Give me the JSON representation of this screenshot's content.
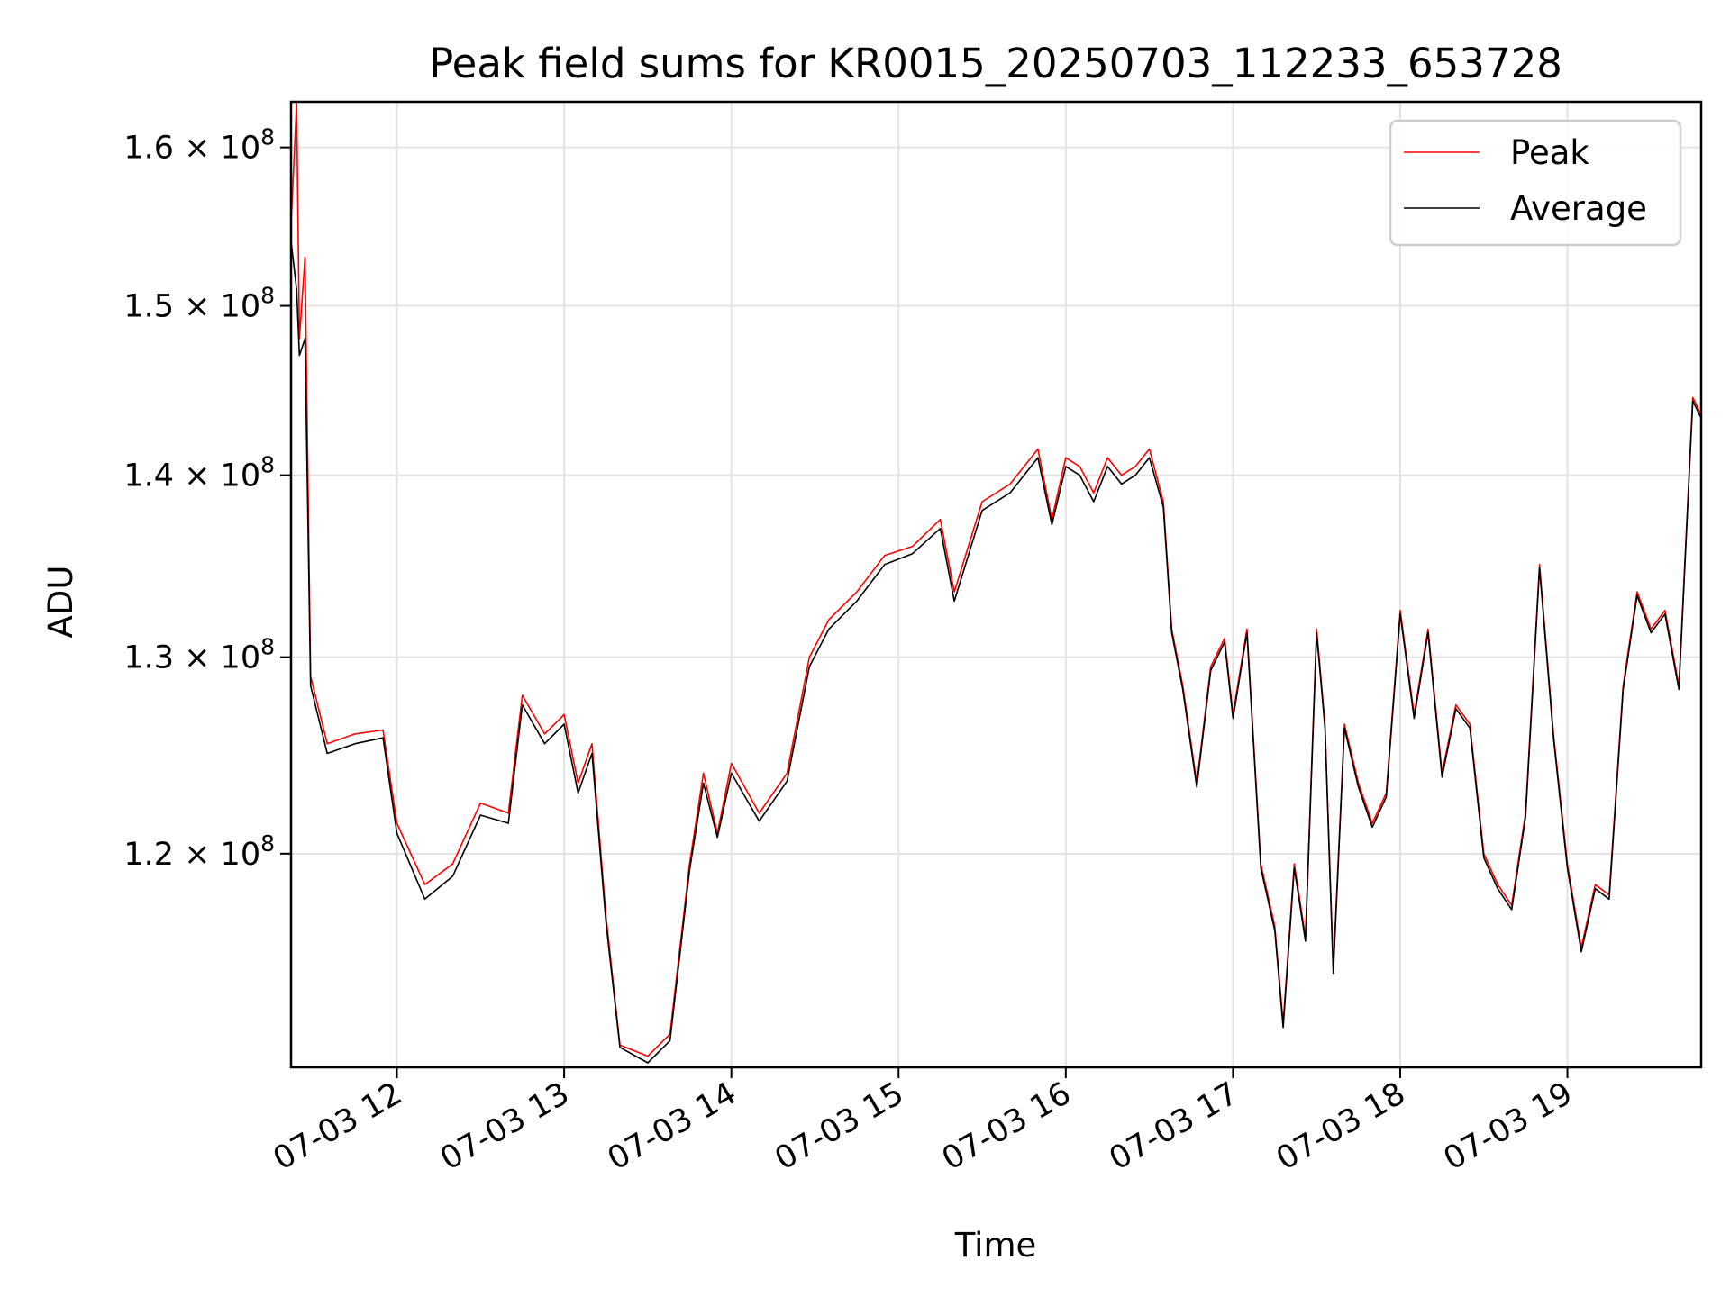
{
  "chart_data": {
    "type": "line",
    "title": "Peak field sums for KR0015_20250703_112233_653728",
    "xlabel": "Time",
    "ylabel": "ADU",
    "yscale": "log",
    "xlim": [
      "2025-07-03 11:22",
      "2025-07-03 19:48"
    ],
    "ylim": [
      110000000,
      163000000
    ],
    "x_ticks": [
      "07-03 12",
      "07-03 13",
      "07-03 14",
      "07-03 15",
      "07-03 16",
      "07-03 17",
      "07-03 18",
      "07-03 19"
    ],
    "y_ticks": [
      {
        "value": 120000000,
        "mantissa": "1.2",
        "exp": "8"
      },
      {
        "value": 130000000,
        "mantissa": "1.3",
        "exp": "8"
      },
      {
        "value": 140000000,
        "mantissa": "1.4",
        "exp": "8"
      },
      {
        "value": 150000000,
        "mantissa": "1.5",
        "exp": "8"
      },
      {
        "value": 160000000,
        "mantissa": "1.6",
        "exp": "8"
      }
    ],
    "grid": true,
    "legend_position": "top-right",
    "series": [
      {
        "name": "Peak",
        "color": "#ff0000",
        "x": [
          "2025-07-03 11:22",
          "2025-07-03 11:24",
          "2025-07-03 11:25",
          "2025-07-03 11:27",
          "2025-07-03 11:29",
          "2025-07-03 11:35",
          "2025-07-03 11:45",
          "2025-07-03 11:55",
          "2025-07-03 12:00",
          "2025-07-03 12:10",
          "2025-07-03 12:20",
          "2025-07-03 12:30",
          "2025-07-03 12:40",
          "2025-07-03 12:45",
          "2025-07-03 12:53",
          "2025-07-03 13:00",
          "2025-07-03 13:05",
          "2025-07-03 13:10",
          "2025-07-03 13:15",
          "2025-07-03 13:20",
          "2025-07-03 13:30",
          "2025-07-03 13:38",
          "2025-07-03 13:45",
          "2025-07-03 13:50",
          "2025-07-03 13:55",
          "2025-07-03 14:00",
          "2025-07-03 14:10",
          "2025-07-03 14:20",
          "2025-07-03 14:28",
          "2025-07-03 14:35",
          "2025-07-03 14:45",
          "2025-07-03 14:55",
          "2025-07-03 15:05",
          "2025-07-03 15:15",
          "2025-07-03 15:20",
          "2025-07-03 15:30",
          "2025-07-03 15:40",
          "2025-07-03 15:50",
          "2025-07-03 15:55",
          "2025-07-03 16:00",
          "2025-07-03 16:05",
          "2025-07-03 16:10",
          "2025-07-03 16:15",
          "2025-07-03 16:20",
          "2025-07-03 16:25",
          "2025-07-03 16:30",
          "2025-07-03 16:35",
          "2025-07-03 16:38",
          "2025-07-03 16:42",
          "2025-07-03 16:47",
          "2025-07-03 16:52",
          "2025-07-03 16:57",
          "2025-07-03 17:00",
          "2025-07-03 17:05",
          "2025-07-03 17:10",
          "2025-07-03 17:15",
          "2025-07-03 17:18",
          "2025-07-03 17:22",
          "2025-07-03 17:26",
          "2025-07-03 17:30",
          "2025-07-03 17:33",
          "2025-07-03 17:36",
          "2025-07-03 17:40",
          "2025-07-03 17:45",
          "2025-07-03 17:50",
          "2025-07-03 17:55",
          "2025-07-03 18:00",
          "2025-07-03 18:05",
          "2025-07-03 18:10",
          "2025-07-03 18:15",
          "2025-07-03 18:20",
          "2025-07-03 18:25",
          "2025-07-03 18:30",
          "2025-07-03 18:35",
          "2025-07-03 18:40",
          "2025-07-03 18:45",
          "2025-07-03 18:50",
          "2025-07-03 18:55",
          "2025-07-03 19:00",
          "2025-07-03 19:05",
          "2025-07-03 19:10",
          "2025-07-03 19:15",
          "2025-07-03 19:20",
          "2025-07-03 19:25",
          "2025-07-03 19:30",
          "2025-07-03 19:35",
          "2025-07-03 19:40",
          "2025-07-03 19:45",
          "2025-07-03 19:48"
        ],
        "y": [
          155000000,
          163000000,
          148000000,
          153000000,
          129000000,
          125500000,
          126000000,
          126200000,
          121500000,
          118500000,
          119500000,
          122500000,
          122000000,
          128000000,
          126000000,
          127000000,
          123500000,
          125500000,
          117000000,
          111000000,
          110500000,
          111500000,
          119500000,
          124000000,
          121000000,
          124500000,
          122000000,
          124000000,
          130000000,
          132000000,
          133500000,
          135500000,
          136000000,
          137500000,
          133500000,
          138500000,
          139500000,
          141500000,
          137500000,
          141000000,
          140500000,
          139000000,
          141000000,
          140000000,
          140500000,
          141500000,
          138500000,
          131500000,
          128500000,
          123500000,
          129500000,
          131000000,
          127000000,
          131500000,
          119500000,
          116500000,
          112000000,
          119500000,
          116000000,
          131500000,
          126500000,
          114500000,
          126500000,
          123500000,
          121500000,
          123000000,
          132500000,
          127000000,
          131500000,
          124000000,
          127500000,
          126500000,
          120000000,
          118500000,
          117500000,
          122000000,
          135000000,
          126000000,
          119500000,
          115500000,
          118500000,
          118000000,
          128500000,
          133500000,
          131500000,
          132500000,
          128500000,
          144500000,
          143500000
        ]
      },
      {
        "name": "Average",
        "color": "#000000",
        "x": [
          "2025-07-03 11:22",
          "2025-07-03 11:24",
          "2025-07-03 11:25",
          "2025-07-03 11:27",
          "2025-07-03 11:29",
          "2025-07-03 11:35",
          "2025-07-03 11:45",
          "2025-07-03 11:55",
          "2025-07-03 12:00",
          "2025-07-03 12:10",
          "2025-07-03 12:20",
          "2025-07-03 12:30",
          "2025-07-03 12:40",
          "2025-07-03 12:45",
          "2025-07-03 12:53",
          "2025-07-03 13:00",
          "2025-07-03 13:05",
          "2025-07-03 13:10",
          "2025-07-03 13:15",
          "2025-07-03 13:20",
          "2025-07-03 13:30",
          "2025-07-03 13:38",
          "2025-07-03 13:45",
          "2025-07-03 13:50",
          "2025-07-03 13:55",
          "2025-07-03 14:00",
          "2025-07-03 14:10",
          "2025-07-03 14:20",
          "2025-07-03 14:28",
          "2025-07-03 14:35",
          "2025-07-03 14:45",
          "2025-07-03 14:55",
          "2025-07-03 15:05",
          "2025-07-03 15:15",
          "2025-07-03 15:20",
          "2025-07-03 15:30",
          "2025-07-03 15:40",
          "2025-07-03 15:50",
          "2025-07-03 15:55",
          "2025-07-03 16:00",
          "2025-07-03 16:05",
          "2025-07-03 16:10",
          "2025-07-03 16:15",
          "2025-07-03 16:20",
          "2025-07-03 16:25",
          "2025-07-03 16:30",
          "2025-07-03 16:35",
          "2025-07-03 16:38",
          "2025-07-03 16:42",
          "2025-07-03 16:47",
          "2025-07-03 16:52",
          "2025-07-03 16:57",
          "2025-07-03 17:00",
          "2025-07-03 17:05",
          "2025-07-03 17:10",
          "2025-07-03 17:15",
          "2025-07-03 17:18",
          "2025-07-03 17:22",
          "2025-07-03 17:26",
          "2025-07-03 17:30",
          "2025-07-03 17:33",
          "2025-07-03 17:36",
          "2025-07-03 17:40",
          "2025-07-03 17:45",
          "2025-07-03 17:50",
          "2025-07-03 17:55",
          "2025-07-03 18:00",
          "2025-07-03 18:05",
          "2025-07-03 18:10",
          "2025-07-03 18:15",
          "2025-07-03 18:20",
          "2025-07-03 18:25",
          "2025-07-03 18:30",
          "2025-07-03 18:35",
          "2025-07-03 18:40",
          "2025-07-03 18:45",
          "2025-07-03 18:50",
          "2025-07-03 18:55",
          "2025-07-03 19:00",
          "2025-07-03 19:05",
          "2025-07-03 19:10",
          "2025-07-03 19:15",
          "2025-07-03 19:20",
          "2025-07-03 19:25",
          "2025-07-03 19:30",
          "2025-07-03 19:35",
          "2025-07-03 19:40",
          "2025-07-03 19:45",
          "2025-07-03 19:48"
        ],
        "y": [
          154000000,
          151000000,
          147000000,
          148000000,
          128500000,
          125000000,
          125500000,
          125800000,
          121000000,
          117800000,
          118900000,
          121900000,
          121500000,
          127500000,
          125500000,
          126500000,
          123000000,
          125000000,
          116700000,
          110900000,
          110200000,
          111200000,
          119200000,
          123500000,
          120800000,
          124000000,
          121600000,
          123600000,
          129500000,
          131500000,
          133000000,
          135000000,
          135600000,
          137000000,
          133000000,
          138000000,
          139000000,
          141000000,
          137200000,
          140500000,
          140000000,
          138500000,
          140500000,
          139500000,
          140000000,
          141000000,
          138200000,
          131300000,
          128300000,
          123300000,
          129300000,
          130800000,
          126800000,
          131300000,
          119300000,
          116300000,
          111800000,
          119300000,
          115800000,
          131300000,
          126300000,
          114300000,
          126300000,
          123300000,
          121300000,
          122800000,
          132300000,
          126800000,
          131300000,
          123800000,
          127300000,
          126300000,
          119800000,
          118300000,
          117300000,
          121800000,
          134800000,
          125800000,
          119300000,
          115300000,
          118300000,
          117800000,
          128300000,
          133300000,
          131300000,
          132300000,
          128300000,
          144300000,
          143300000
        ]
      }
    ]
  }
}
